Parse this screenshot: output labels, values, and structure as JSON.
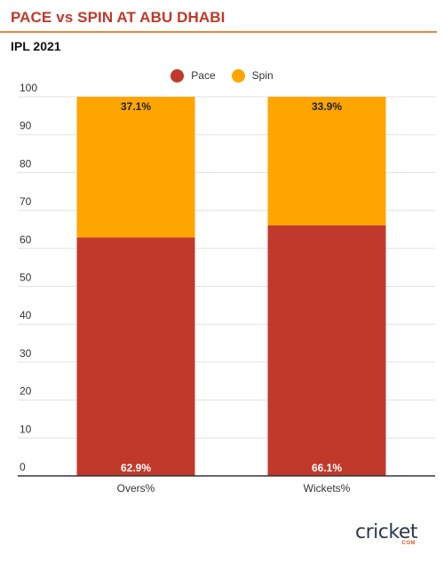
{
  "header": {
    "title": "PACE vs SPIN AT ABU DHABI",
    "subtitle": "IPL 2021"
  },
  "logo": {
    "text": "cricket",
    "sub": "COM"
  },
  "chart_data": {
    "type": "bar",
    "stacked": true,
    "categories": [
      "Overs%",
      "Wickets%"
    ],
    "series": [
      {
        "name": "Pace",
        "values": [
          62.9,
          66.1
        ],
        "labels": [
          "62.9%",
          "66.1%"
        ],
        "color": "#c0392b"
      },
      {
        "name": "Spin",
        "values": [
          37.1,
          33.9
        ],
        "labels": [
          "37.1%",
          "33.9%"
        ],
        "color": "#ffa500"
      }
    ],
    "ylim": [
      0,
      100
    ],
    "yticks": [
      "0",
      "10",
      "20",
      "30",
      "40",
      "50",
      "60",
      "70",
      "80",
      "90",
      "100"
    ],
    "grid": true,
    "legend": "top-center"
  }
}
